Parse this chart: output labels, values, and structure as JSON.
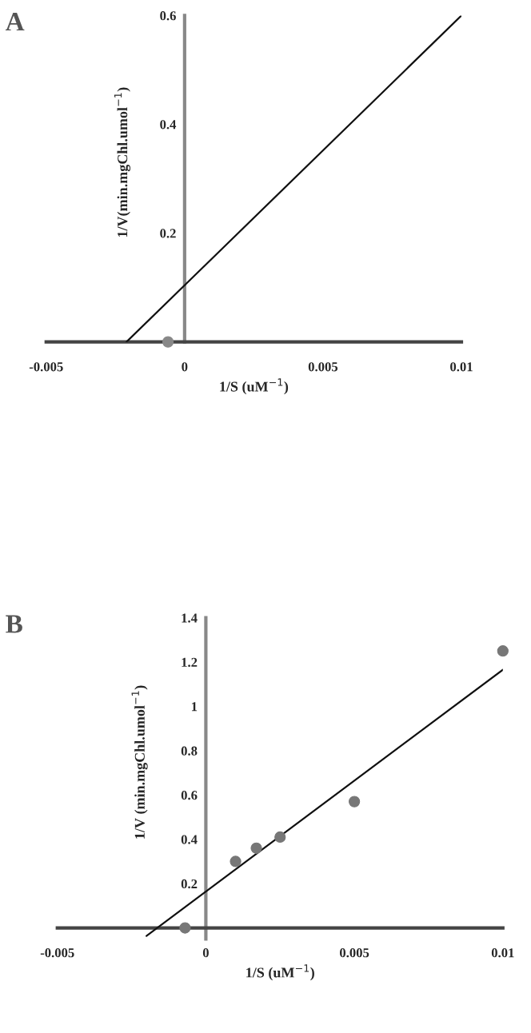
{
  "chart_data": [
    {
      "type": "line",
      "title": "A",
      "xlabel": "1/S (uM$^{−1}$)",
      "ylabel": "1/V(min.mgChl.umol$^{−1}$)",
      "xlim": [
        -0.005,
        0.01
      ],
      "ylim": [
        0,
        0.6
      ],
      "xticks": [
        -0.005,
        0,
        0.005,
        0.01
      ],
      "yticks": [
        0.2,
        0.4,
        0.6
      ],
      "grid": false,
      "series": [
        {
          "color": "#111111",
          "x": [
            -0.0021,
            0.01
          ],
          "values": [
            0,
            0.6
          ]
        },
        {
          "type": "scatter",
          "color": "#888888",
          "marker": "circle",
          "x": [
            -0.0006
          ],
          "values": [
            0
          ]
        }
      ]
    },
    {
      "type": "scatter",
      "title": "B",
      "xlabel": "1/S (uM$^{−1}$)",
      "ylabel": "1/V (min.mgChl.umol$^{−1}$)",
      "xlim": [
        -0.005,
        0.01
      ],
      "ylim": [
        -0.05,
        1.4
      ],
      "xticks": [
        -0.005,
        0,
        0.005,
        0.01
      ],
      "yticks": [
        0.2,
        0.4,
        0.6,
        0.8,
        1,
        1.2,
        1.4
      ],
      "grid": false,
      "series": [
        {
          "type": "line",
          "color": "#111111",
          "x": [
            -0.002,
            0.01
          ],
          "values": [
            -0.036,
            1.165
          ]
        },
        {
          "color": "#777777",
          "marker": "circle",
          "x": [
            -0.0007,
            0.001,
            0.0017,
            0.0025,
            0.005,
            0.01
          ],
          "values": [
            0,
            0.3,
            0.36,
            0.41,
            0.57,
            1.25
          ]
        }
      ]
    }
  ]
}
